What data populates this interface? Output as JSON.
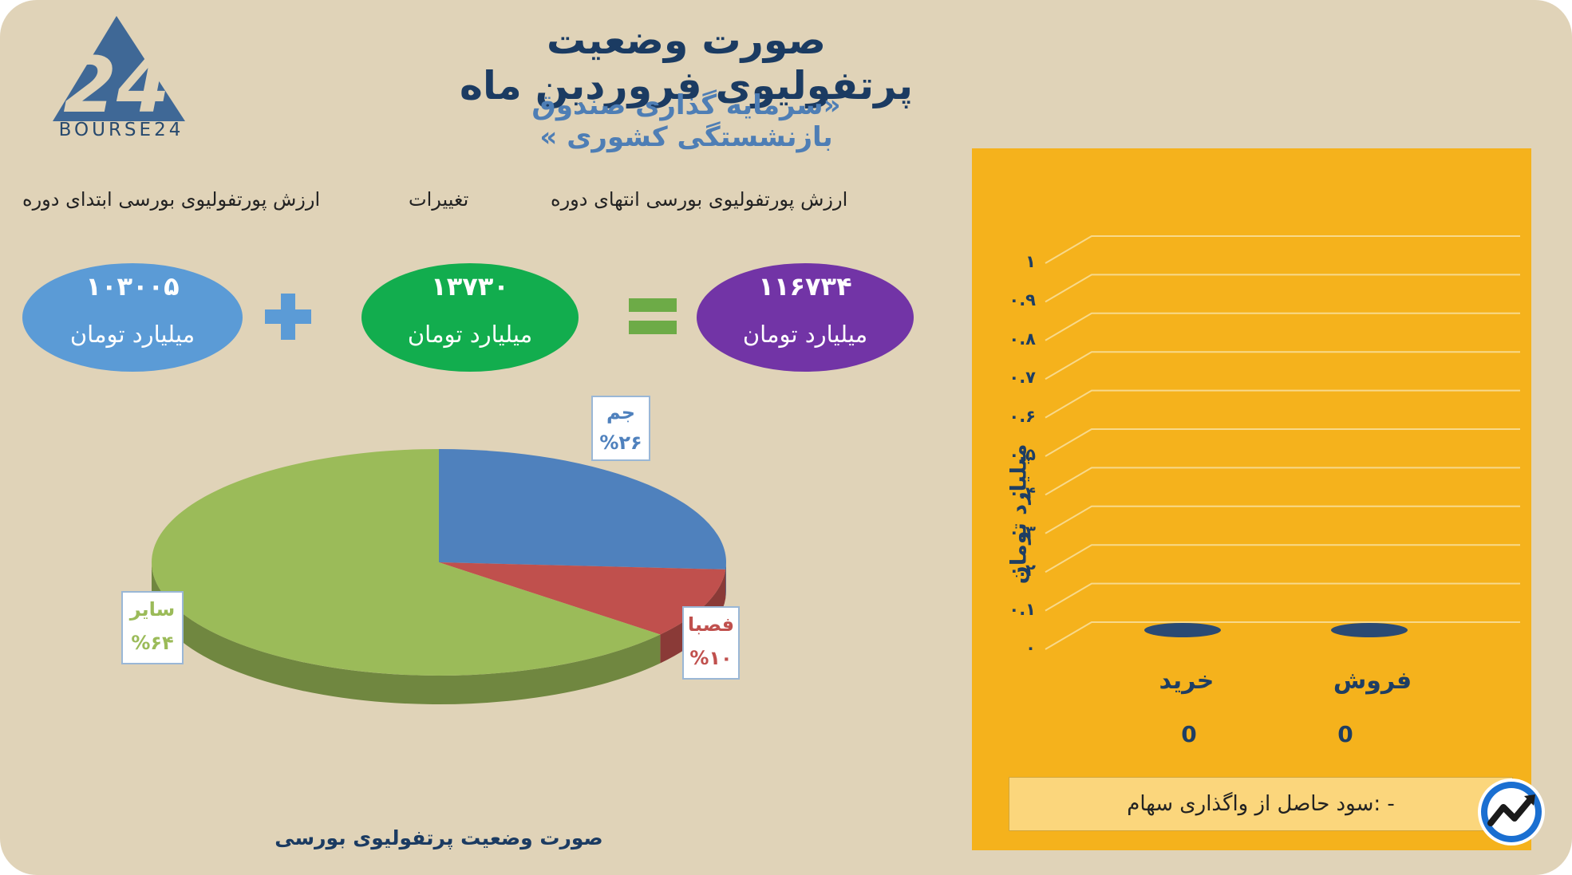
{
  "header": {
    "title": "صورت وضعیت پرتفولیوی فروردین ماه",
    "subtitle": "«سرمایه گذاری صندوق بازنشستگی کشوری »"
  },
  "logo": {
    "text": "BOURSE24",
    "mark": "24"
  },
  "summary": {
    "end_label": "ارزش پورتفولیوی بورسی انتهای دوره",
    "change_label": "تغییرات",
    "start_label": "ارزش پورتفولیوی بورسی ابتدای دوره",
    "end_value": "۱۱۶۷۳۴",
    "change_value": "۱۳۷۳۰",
    "start_value": "۱۰۳۰۰۵",
    "unit": "میلیارد تومان",
    "colors": {
      "end": "#7234a6",
      "change": "#12ad4e",
      "start": "#5b9bd6",
      "plus": "#5b9bd6",
      "equals": "#6dab47"
    }
  },
  "pie_caption": "صورت وضعیت پرتفولیوی بورسی",
  "profit_label": "- :سود حاصل از واگذاری سهام",
  "chart_data": [
    {
      "type": "pie",
      "title": "صورت وضعیت پرتفولیوی بورسی",
      "slices": [
        {
          "label": "جم",
          "value": 26,
          "display": "%۲۶",
          "color": "#4f81bd"
        },
        {
          "label": "فصبا",
          "value": 10,
          "display": "%۱۰",
          "color": "#c0504d"
        },
        {
          "label": "سایر",
          "value": 64,
          "display": "%۶۴",
          "color": "#9bbb59"
        }
      ]
    },
    {
      "type": "bar",
      "categories": [
        "خرید",
        "فروش"
      ],
      "values": [
        0,
        0
      ],
      "value_labels": [
        "0",
        "0"
      ],
      "ylabel": "میلیارد تومان",
      "ylim": [
        0,
        1
      ],
      "yticks": [
        "۰",
        "۰.۱",
        "۰.۲",
        "۰.۳",
        "۰.۴",
        "۰.۵",
        "۰.۶",
        "۰.۷",
        "۰.۸",
        "۰.۹",
        "۱"
      ],
      "grid": true,
      "bar_color": "#2a4a73",
      "background": "#f5b21c"
    }
  ]
}
